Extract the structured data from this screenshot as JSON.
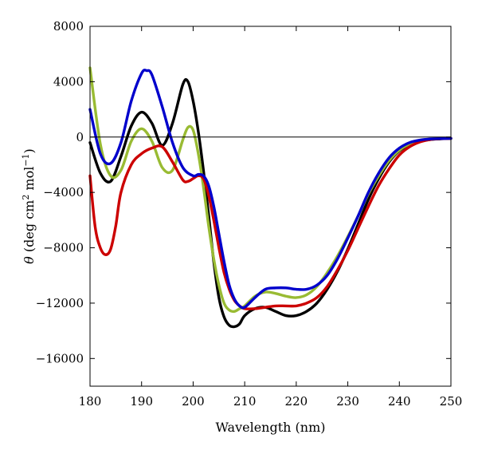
{
  "chart_data": {
    "type": "line",
    "title": "",
    "xlabel": "Wavelength (nm)",
    "ylabel": {
      "symbol": "θ",
      "open": " (deg cm",
      "sup1": "2",
      "mid": " mol",
      "sup2": "−1",
      "close": ")"
    },
    "xlim": [
      180,
      250
    ],
    "ylim": [
      -18000,
      8000
    ],
    "x_ticks": [
      180,
      190,
      200,
      210,
      220,
      230,
      240,
      250
    ],
    "y_ticks": [
      8000,
      4000,
      0,
      -4000,
      -8000,
      -12000,
      -16000
    ],
    "x_tick_labels": [
      "180",
      "190",
      "200",
      "210",
      "220",
      "230",
      "240",
      "250"
    ],
    "y_tick_labels": [
      "8000",
      "4000",
      "0",
      "−4000",
      "−8000",
      "−12000",
      "−16000"
    ],
    "zero_line": true,
    "grid": false,
    "legend": "none",
    "series": [
      {
        "color": "#000000",
        "x": [
          180,
          182,
          184,
          186,
          188,
          190,
          192,
          194,
          196,
          198,
          199,
          200,
          201,
          202,
          203,
          204,
          205,
          206,
          207,
          208,
          209,
          210,
          212,
          214,
          216,
          218,
          220,
          222,
          224,
          226,
          228,
          230,
          232,
          234,
          236,
          238,
          240,
          242,
          244,
          246,
          248,
          250
        ],
        "y": [
          -400,
          -2600,
          -3200,
          -1400,
          800,
          1800,
          1000,
          -600,
          1000,
          3800,
          4000,
          2600,
          400,
          -2400,
          -5600,
          -9000,
          -11600,
          -13000,
          -13600,
          -13700,
          -13500,
          -12900,
          -12400,
          -12300,
          -12600,
          -12900,
          -12900,
          -12600,
          -12000,
          -11000,
          -9700,
          -8100,
          -6300,
          -4500,
          -3000,
          -1800,
          -1000,
          -550,
          -300,
          -180,
          -130,
          -100
        ]
      },
      {
        "color": "#99bb33",
        "x": [
          180,
          182,
          184,
          186,
          188,
          190,
          192,
          194,
          196,
          198,
          199,
          200,
          201,
          202,
          203,
          204,
          205,
          206,
          207,
          208,
          209,
          210,
          212,
          214,
          216,
          218,
          220,
          222,
          224,
          226,
          228,
          230,
          232,
          234,
          236,
          238,
          240,
          242,
          244,
          246,
          248,
          250
        ],
        "y": [
          5000,
          -500,
          -2800,
          -2400,
          -300,
          600,
          -300,
          -2200,
          -2400,
          -200,
          700,
          500,
          -1200,
          -3600,
          -6400,
          -8800,
          -10700,
          -12000,
          -12500,
          -12600,
          -12400,
          -12200,
          -11500,
          -11200,
          -11300,
          -11500,
          -11600,
          -11400,
          -10800,
          -9800,
          -8600,
          -7200,
          -5700,
          -4100,
          -2800,
          -1700,
          -950,
          -500,
          -270,
          -150,
          -110,
          -100
        ]
      },
      {
        "color": "#cc0000",
        "x": [
          180,
          181,
          182,
          183,
          184,
          185,
          186,
          188,
          190,
          192,
          194,
          196,
          198,
          199,
          200,
          201,
          202,
          203,
          204,
          205,
          206,
          207,
          208,
          209,
          210,
          212,
          214,
          216,
          218,
          220,
          222,
          224,
          226,
          228,
          230,
          232,
          234,
          236,
          238,
          240,
          242,
          244,
          246,
          248,
          250
        ],
        "y": [
          -2800,
          -6500,
          -8000,
          -8500,
          -8100,
          -6400,
          -4000,
          -2000,
          -1200,
          -800,
          -700,
          -1800,
          -3100,
          -3200,
          -3000,
          -2800,
          -3000,
          -4200,
          -6000,
          -8000,
          -9800,
          -11000,
          -11800,
          -12200,
          -12400,
          -12400,
          -12300,
          -12200,
          -12200,
          -12200,
          -12000,
          -11600,
          -10800,
          -9600,
          -8200,
          -6600,
          -5000,
          -3500,
          -2300,
          -1300,
          -700,
          -350,
          -180,
          -120,
          -100
        ]
      },
      {
        "color": "#0000cc",
        "x": [
          180,
          182,
          184,
          186,
          188,
          190,
          191,
          192,
          194,
          196,
          198,
          200,
          201,
          202,
          203,
          204,
          205,
          206,
          207,
          208,
          209,
          210,
          212,
          214,
          216,
          218,
          220,
          222,
          224,
          226,
          228,
          230,
          232,
          234,
          236,
          238,
          240,
          242,
          244,
          246,
          248,
          250
        ],
        "y": [
          2000,
          -1200,
          -1900,
          -400,
          2600,
          4600,
          4800,
          4500,
          2200,
          -400,
          -2200,
          -2800,
          -2700,
          -2800,
          -3500,
          -5000,
          -7000,
          -9000,
          -10700,
          -11700,
          -12200,
          -12300,
          -11600,
          -11000,
          -10900,
          -10900,
          -11000,
          -11000,
          -10700,
          -10000,
          -8800,
          -7300,
          -5700,
          -4000,
          -2600,
          -1500,
          -800,
          -400,
          -220,
          -140,
          -110,
          -100
        ]
      }
    ]
  }
}
